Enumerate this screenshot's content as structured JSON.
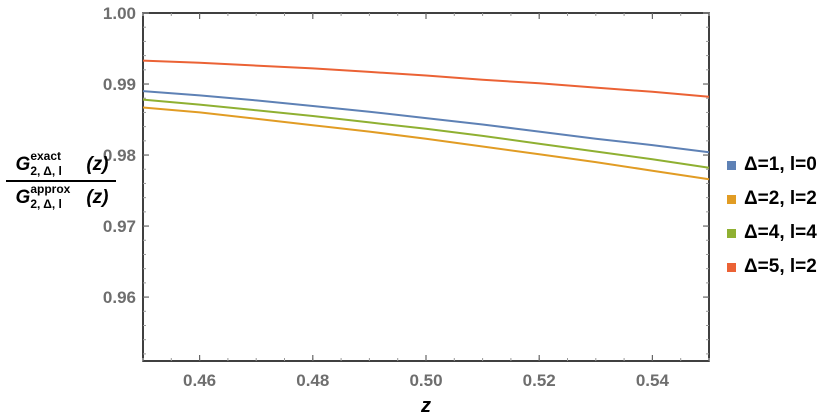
{
  "chart_data": {
    "type": "line",
    "xlabel": "z",
    "ylabel": {
      "numerator_symbol": "G",
      "numerator_superscript": "exact",
      "numerator_subscript": "2, Δ, l",
      "numerator_argument": "(z)",
      "denominator_symbol": "G",
      "denominator_superscript": "approx",
      "denominator_subscript": "2, Δ, l",
      "denominator_argument": "(z)"
    },
    "xlim": [
      0.45,
      0.55
    ],
    "ylim": [
      0.951,
      1.0
    ],
    "xticks": [
      0.46,
      0.48,
      0.5,
      0.52,
      0.54
    ],
    "xtick_labels": [
      "0.46",
      "0.48",
      "0.50",
      "0.52",
      "0.54"
    ],
    "yticks": [
      0.96,
      0.97,
      0.98,
      0.99,
      1.0
    ],
    "ytick_labels": [
      "0.96",
      "0.97",
      "0.98",
      "0.99",
      "1.00"
    ],
    "legend_position": "right",
    "grid": false,
    "x": [
      0.45,
      0.46,
      0.47,
      0.48,
      0.49,
      0.5,
      0.51,
      0.52,
      0.53,
      0.54,
      0.55
    ],
    "series": [
      {
        "name": "Δ=1,  l=0",
        "color": "#5e81b5",
        "values": [
          0.989,
          0.9884,
          0.9877,
          0.9869,
          0.9861,
          0.9852,
          0.9843,
          0.9833,
          0.9823,
          0.9814,
          0.9804
        ]
      },
      {
        "name": "Δ=2,  l=2",
        "color": "#e19c24",
        "values": [
          0.9867,
          0.986,
          0.9851,
          0.9842,
          0.9833,
          0.9823,
          0.9812,
          0.9801,
          0.979,
          0.9778,
          0.9766
        ]
      },
      {
        "name": "Δ=4,  l=4",
        "color": "#8fb032",
        "values": [
          0.9878,
          0.9871,
          0.9863,
          0.9855,
          0.9846,
          0.9837,
          0.9827,
          0.9816,
          0.9805,
          0.9794,
          0.9782
        ]
      },
      {
        "name": "Δ=5,  l=2",
        "color": "#eb6235",
        "values": [
          0.9933,
          0.993,
          0.9926,
          0.9922,
          0.9917,
          0.9912,
          0.9906,
          0.9901,
          0.9895,
          0.9889,
          0.9882
        ]
      }
    ]
  }
}
